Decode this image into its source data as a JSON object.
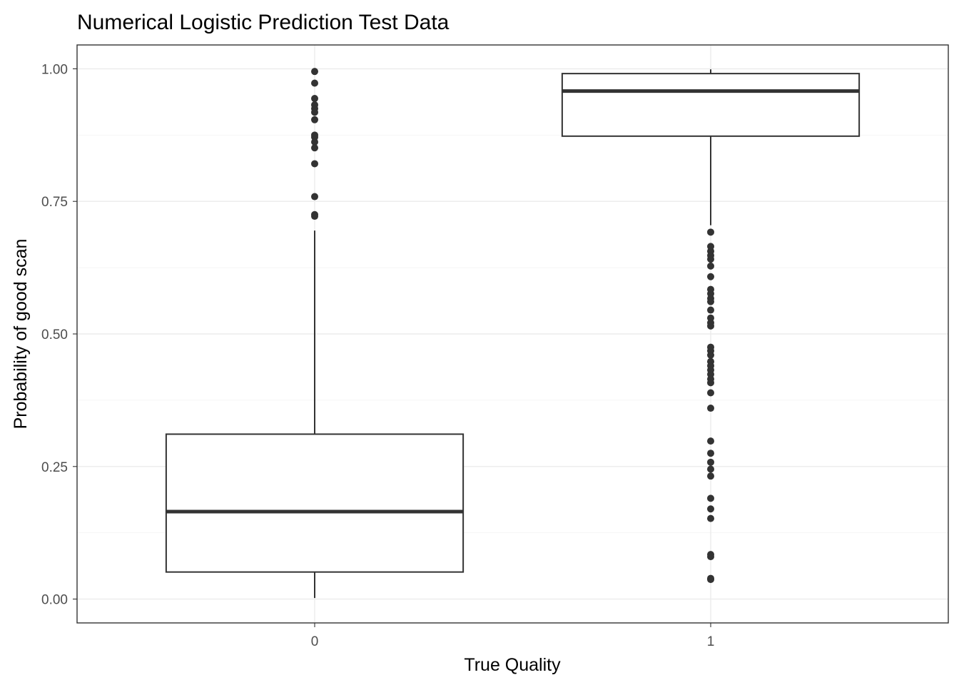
{
  "chart_data": {
    "type": "boxplot",
    "title": "Numerical Logistic Prediction Test Data",
    "xlabel": "True Quality",
    "ylabel": "Probability of good scan",
    "categories": [
      "0",
      "1"
    ],
    "ylim": [
      -0.045,
      1.045
    ],
    "yticks": [
      0.0,
      0.25,
      0.5,
      0.75,
      1.0
    ],
    "ytick_labels": [
      "0.00",
      "0.25",
      "0.50",
      "0.75",
      "1.00"
    ],
    "grid": true,
    "boxes": [
      {
        "category": "0",
        "whisker_low": 0.002,
        "q1": 0.051,
        "median": 0.165,
        "q3": 0.311,
        "whisker_high": 0.695,
        "outliers": [
          0.995,
          0.973,
          0.944,
          0.932,
          0.925,
          0.918,
          0.904,
          0.875,
          0.871,
          0.862,
          0.851,
          0.821,
          0.759,
          0.725,
          0.722
        ]
      },
      {
        "category": "1",
        "whisker_low": 0.705,
        "q1": 0.873,
        "median": 0.958,
        "q3": 0.991,
        "whisker_high": 0.999,
        "outliers": [
          0.692,
          0.665,
          0.656,
          0.648,
          0.641,
          0.628,
          0.608,
          0.584,
          0.576,
          0.567,
          0.561,
          0.545,
          0.53,
          0.521,
          0.515,
          0.475,
          0.468,
          0.46,
          0.448,
          0.44,
          0.432,
          0.424,
          0.415,
          0.408,
          0.389,
          0.36,
          0.298,
          0.275,
          0.258,
          0.245,
          0.232,
          0.19,
          0.17,
          0.152,
          0.084,
          0.08,
          0.039,
          0.037
        ]
      }
    ]
  }
}
